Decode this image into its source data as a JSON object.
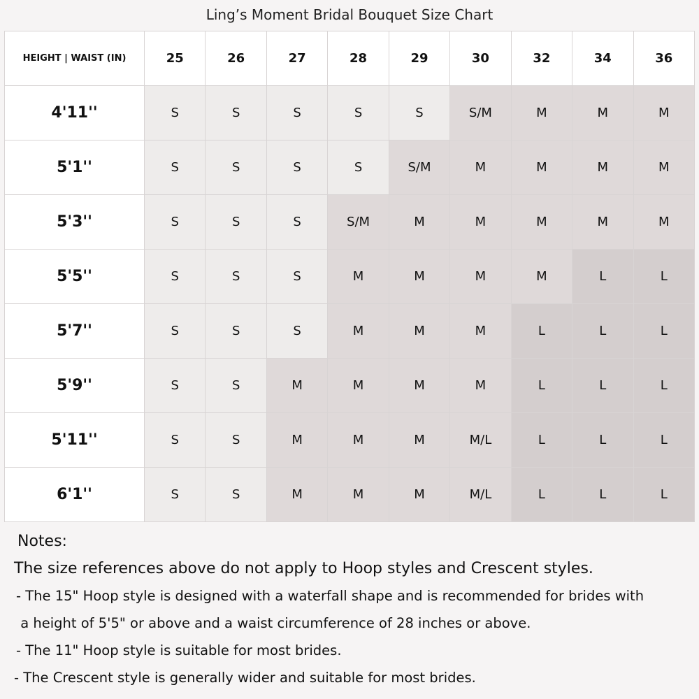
{
  "title": "Ling’s Moment Bridal Bouquet Size Chart",
  "table": {
    "corner": "HEIGHT | WAIST (IN)",
    "columns": [
      "25",
      "26",
      "27",
      "28",
      "29",
      "30",
      "32",
      "34",
      "36"
    ],
    "rows": [
      {
        "height": "4'11''",
        "sizes": [
          "S",
          "S",
          "S",
          "S",
          "S",
          "S/M",
          "M",
          "M",
          "M"
        ]
      },
      {
        "height": "5'1''",
        "sizes": [
          "S",
          "S",
          "S",
          "S",
          "S/M",
          "M",
          "M",
          "M",
          "M"
        ]
      },
      {
        "height": "5'3''",
        "sizes": [
          "S",
          "S",
          "S",
          "S/M",
          "M",
          "M",
          "M",
          "M",
          "M"
        ]
      },
      {
        "height": "5'5''",
        "sizes": [
          "S",
          "S",
          "S",
          "M",
          "M",
          "M",
          "M",
          "L",
          "L"
        ]
      },
      {
        "height": "5'7''",
        "sizes": [
          "S",
          "S",
          "S",
          "M",
          "M",
          "M",
          "L",
          "L",
          "L"
        ]
      },
      {
        "height": "5'9''",
        "sizes": [
          "S",
          "S",
          "M",
          "M",
          "M",
          "M",
          "L",
          "L",
          "L"
        ]
      },
      {
        "height": "5'11''",
        "sizes": [
          "S",
          "S",
          "M",
          "M",
          "M",
          "M/L",
          "L",
          "L",
          "L"
        ]
      },
      {
        "height": "6'1''",
        "sizes": [
          "S",
          "S",
          "M",
          "M",
          "M",
          "M/L",
          "L",
          "L",
          "L"
        ]
      }
    ],
    "colors": {
      "S": "#eeeceb",
      "M": "#dfd9d9",
      "L": "#d4cece"
    }
  },
  "notes": {
    "heading": "Notes:",
    "lines": [
      "The size references above do not apply to Hoop styles and Crescent styles.",
      "- The 15\" Hoop style is designed with a waterfall shape and is recommended for brides with",
      " a height of 5'5\" or above and a waist circumference of 28 inches or above.",
      "- The 11\" Hoop style is suitable for most brides.",
      "- The Crescent style is generally wider and suitable for most brides."
    ]
  }
}
